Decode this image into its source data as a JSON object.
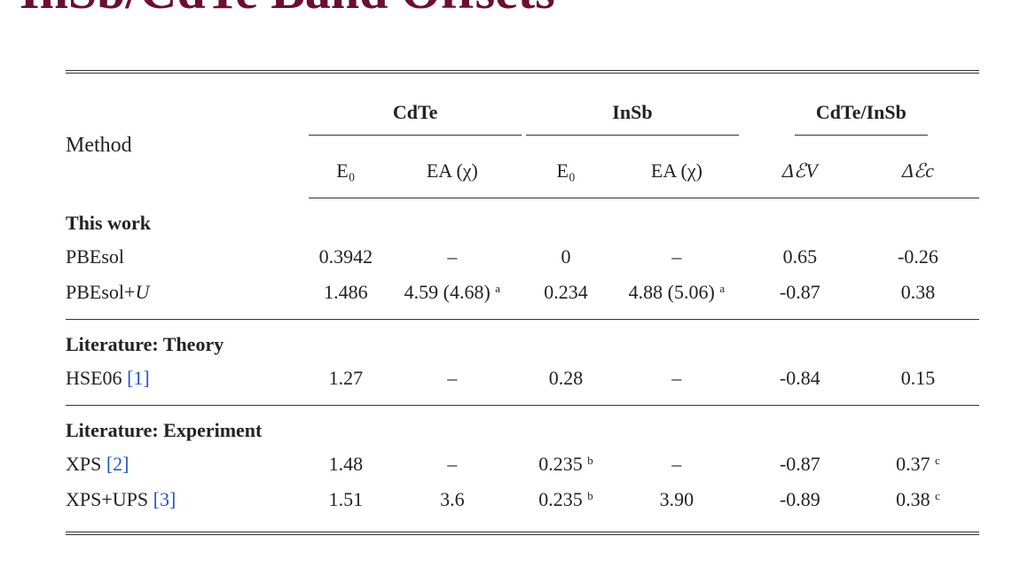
{
  "title": "InSb/CdTe Band Offsets",
  "table": {
    "method_header": "Method",
    "groups": [
      "CdTe",
      "InSb",
      "CdTe/InSb"
    ],
    "subheaders": [
      "E₀",
      "EA (χ)",
      "E₀",
      "EA (χ)",
      "ΔℰV",
      "Δℰc"
    ],
    "sections": [
      {
        "label": "This work",
        "rows": [
          {
            "method": "PBEsol",
            "ref": "",
            "cells": [
              "0.3942",
              "–",
              "0",
              "–",
              "0.65",
              "-0.26"
            ],
            "sups": [
              "",
              "",
              "",
              "",
              "",
              ""
            ]
          },
          {
            "method": "PBEsol+U",
            "ref": "",
            "cells": [
              "1.486",
              "4.59 (4.68)",
              "0.234",
              "4.88 (5.06)",
              "-0.87",
              "0.38"
            ],
            "sups": [
              "",
              "a",
              "",
              "a",
              "",
              ""
            ]
          }
        ]
      },
      {
        "label": "Literature: Theory",
        "rows": [
          {
            "method": "HSE06",
            "ref": "[1]",
            "cells": [
              "1.27",
              "–",
              "0.28",
              "–",
              "-0.84",
              "0.15"
            ],
            "sups": [
              "",
              "",
              "",
              "",
              "",
              ""
            ]
          }
        ]
      },
      {
        "label": "Literature: Experiment",
        "rows": [
          {
            "method": "XPS",
            "ref": "[2]",
            "cells": [
              "1.48",
              "–",
              "0.235",
              "–",
              "-0.87",
              "0.37"
            ],
            "sups": [
              "",
              "",
              "b",
              "",
              "",
              "c"
            ]
          },
          {
            "method": "XPS+UPS",
            "ref": "[3]",
            "cells": [
              "1.51",
              "3.6",
              "0.235",
              "3.90",
              "-0.89",
              "0.38"
            ],
            "sups": [
              "",
              "",
              "b",
              "",
              "",
              "c"
            ]
          }
        ]
      }
    ]
  }
}
